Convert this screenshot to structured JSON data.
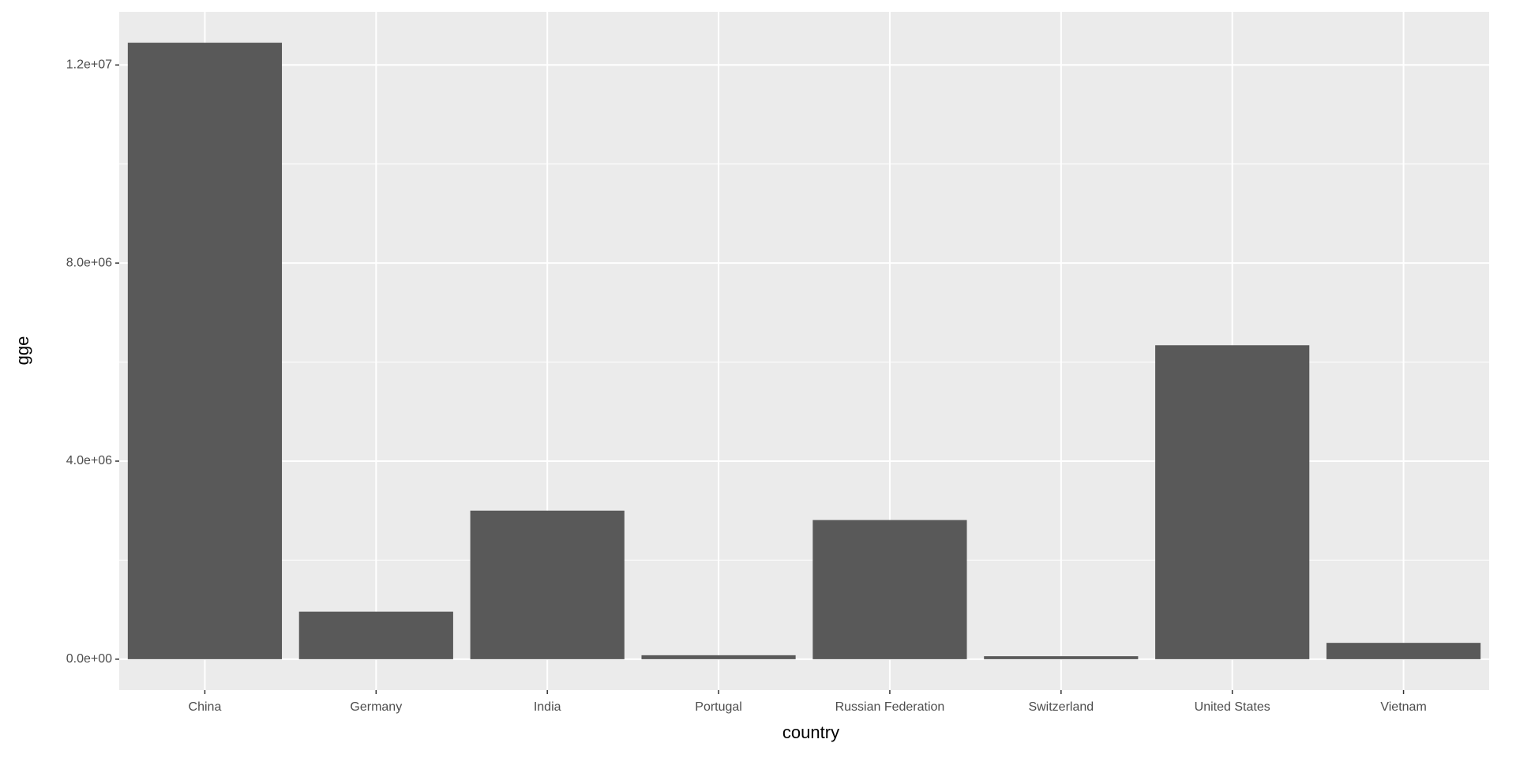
{
  "chart_data": {
    "type": "bar",
    "x_label": "country",
    "y_label": "gge",
    "categories": [
      "China",
      "Germany",
      "India",
      "Portugal",
      "Russian Federation",
      "Switzerland",
      "United States",
      "Vietnam"
    ],
    "values": [
      12450000,
      960000,
      3000000,
      80000,
      2810000,
      60000,
      6340000,
      330000
    ],
    "color": "#595959",
    "ylim": [
      -624000,
      13073000
    ],
    "yticks": [
      {
        "value": 0,
        "label": "0.0e+00"
      },
      {
        "value": 4000000,
        "label": "4.0e+06"
      },
      {
        "value": 8000000,
        "label": "8.0e+06"
      },
      {
        "value": 12000000,
        "label": "1.2e+07"
      }
    ],
    "minor_yticks": [
      2000000,
      6000000,
      10000000
    ],
    "grid": true
  }
}
